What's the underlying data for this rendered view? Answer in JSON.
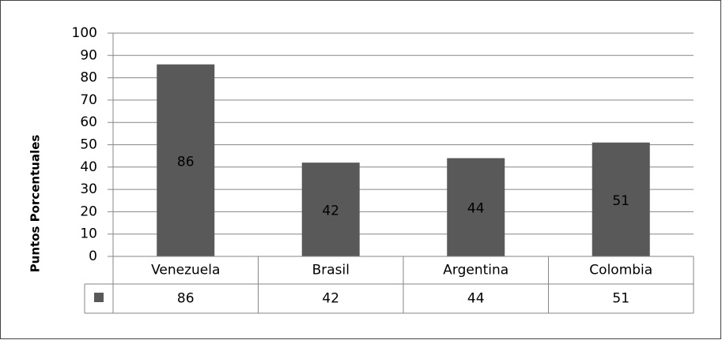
{
  "chart_data": {
    "type": "bar",
    "y_label": "Puntos Porcentuales",
    "categories": [
      "Venezuela",
      "Brasil",
      "Argentina",
      "Colombia"
    ],
    "values": [
      86,
      42,
      44,
      51
    ],
    "color": "#595959",
    "ylim": [
      0,
      100
    ],
    "yticks": [
      0,
      10,
      20,
      30,
      40,
      50,
      60,
      70,
      80,
      90,
      100
    ],
    "grid": true,
    "data_table": true
  }
}
